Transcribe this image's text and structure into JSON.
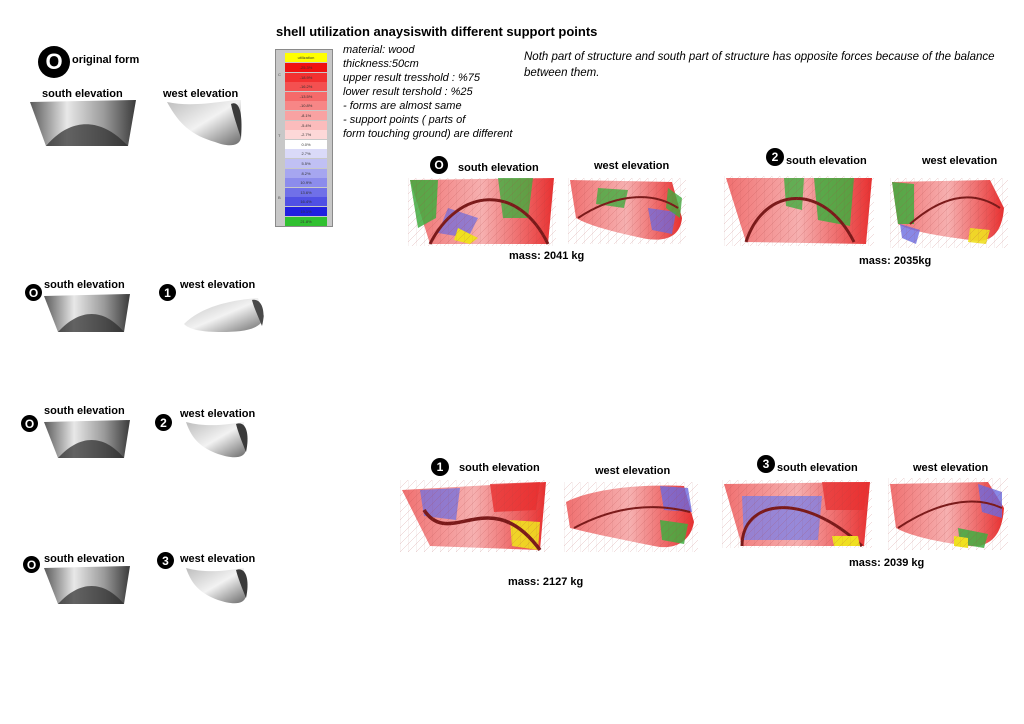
{
  "title": "shell utilization anaysiswith different support points",
  "properties": [
    "material: wood",
    "thickness:50cm",
    "upper result tresshold : %75",
    "lower result tershold  : %25",
    "- forms are almost same",
    "- support points ( parts of",
    "form touching ground) are different"
  ],
  "note": "Noth part of structure and south part of structure has opposite forces because of the balance between them.",
  "legend": {
    "header": "utilization",
    "rows": [
      {
        "label": "-25.3%",
        "color": "#f01010"
      },
      {
        "label": "-18.9%",
        "color": "#f23030"
      },
      {
        "label": "-16.2%",
        "color": "#f45050"
      },
      {
        "label": "-13.5%",
        "color": "#f56a6a"
      },
      {
        "label": "-10.8%",
        "color": "#f78686"
      },
      {
        "label": "-8.1%",
        "color": "#f9a2a2"
      },
      {
        "label": "-5.4%",
        "color": "#fbbcbc"
      },
      {
        "label": "-2.7%",
        "color": "#fdd8d8"
      },
      {
        "label": "0.0%",
        "color": "#ffffff"
      },
      {
        "label": "2.7%",
        "color": "#dadaf8"
      },
      {
        "label": "5.5%",
        "color": "#c0c0f4"
      },
      {
        "label": "8.2%",
        "color": "#a6a6f0"
      },
      {
        "label": "10.9%",
        "color": "#8c8cec"
      },
      {
        "label": "13.6%",
        "color": "#7070e8"
      },
      {
        "label": "16.4%",
        "color": "#5050e4"
      },
      {
        "label": "19.1%",
        "color": "#2020e0"
      },
      {
        "label": "21.8%",
        "color": "#30c030"
      }
    ],
    "side_labels": [
      "C",
      "T",
      "B"
    ]
  },
  "left_panel": {
    "original": {
      "badge": "O",
      "label": "original form",
      "south": "south elevation",
      "west": "west elevation"
    },
    "rows": [
      {
        "badge_a": "O",
        "south": "south elevation",
        "badge_b": "1",
        "west": "west elevation"
      },
      {
        "badge_a": "O",
        "south": "south elevation",
        "badge_b": "2",
        "west": "west elevation"
      },
      {
        "badge_a": "O",
        "south": "south elevation",
        "badge_b": "3",
        "west": "west elevation"
      }
    ]
  },
  "results": [
    {
      "badge": "O",
      "south": "south elevation",
      "west": "west elevation",
      "mass": "mass: 2041 kg"
    },
    {
      "badge": "2",
      "south": "south elevation",
      "west": "west elevation",
      "mass": "mass: 2035kg"
    },
    {
      "badge": "1",
      "south": "south elevation",
      "west": "west elevation",
      "mass": "mass: 2127 kg"
    },
    {
      "badge": "3",
      "south": "south elevation",
      "west": "west elevation",
      "mass": "mass: 2039 kg"
    }
  ]
}
